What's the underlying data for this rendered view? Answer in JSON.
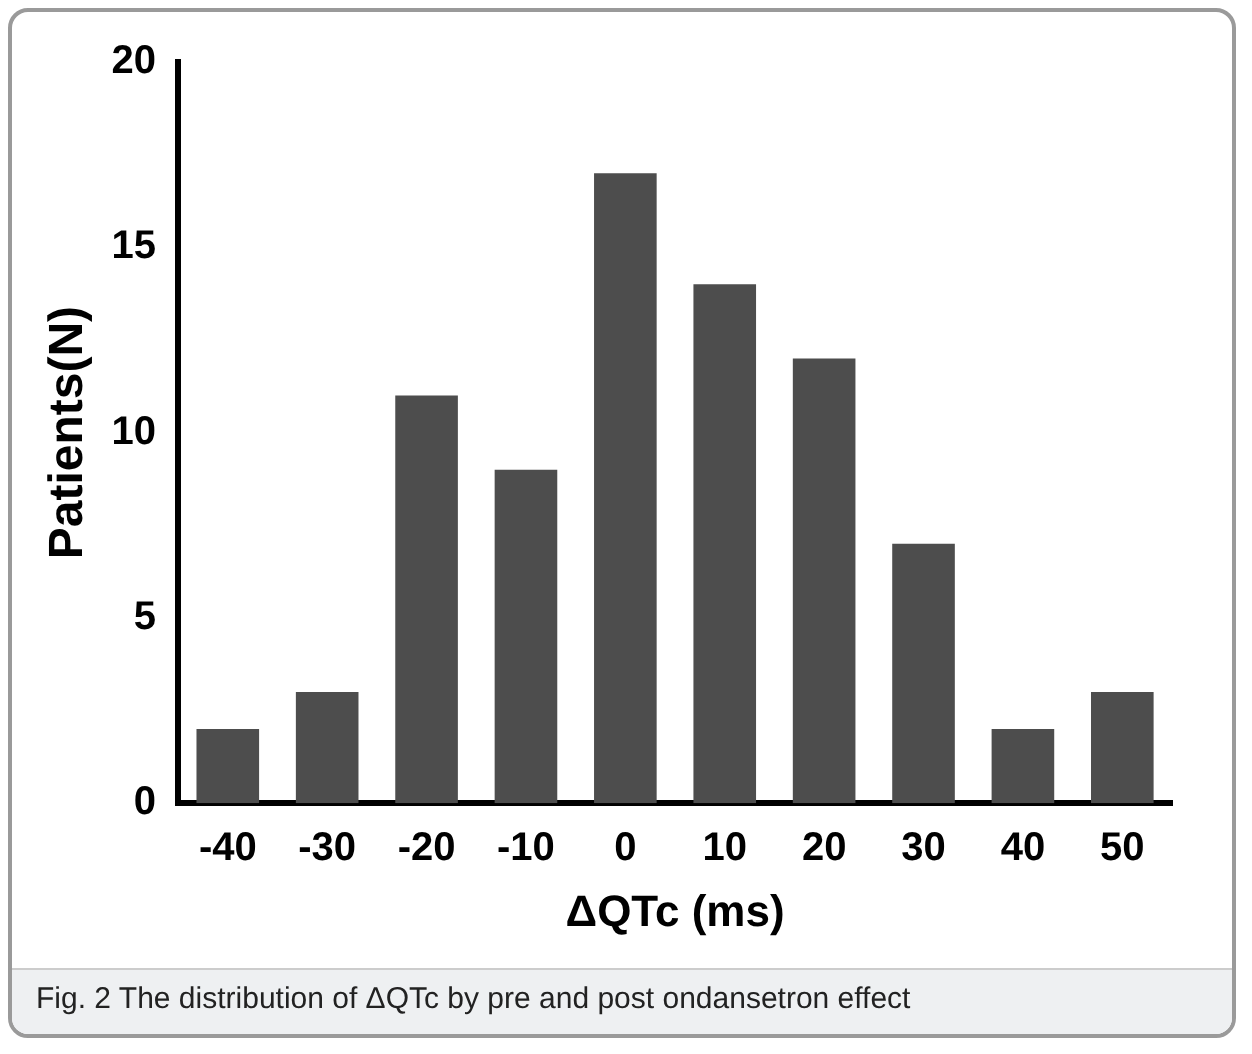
{
  "chart_data": {
    "type": "bar",
    "xlabel": "ΔQTc (ms)",
    "ylabel": "Patients(N)",
    "categories": [
      "-40",
      "-30",
      "-20",
      "-10",
      "0",
      "10",
      "20",
      "30",
      "40",
      "50"
    ],
    "values": [
      2,
      3,
      11,
      9,
      17,
      14,
      12,
      7,
      2,
      3
    ],
    "color": "#4d4d4d",
    "ylim": [
      0,
      20
    ],
    "yticks": [
      0,
      5,
      10,
      15,
      20
    ],
    "grid": false,
    "legend": false,
    "annotations": [
      "Fig. 2  The distribution of ΔQTc by pre and post ondansetron effect"
    ]
  }
}
